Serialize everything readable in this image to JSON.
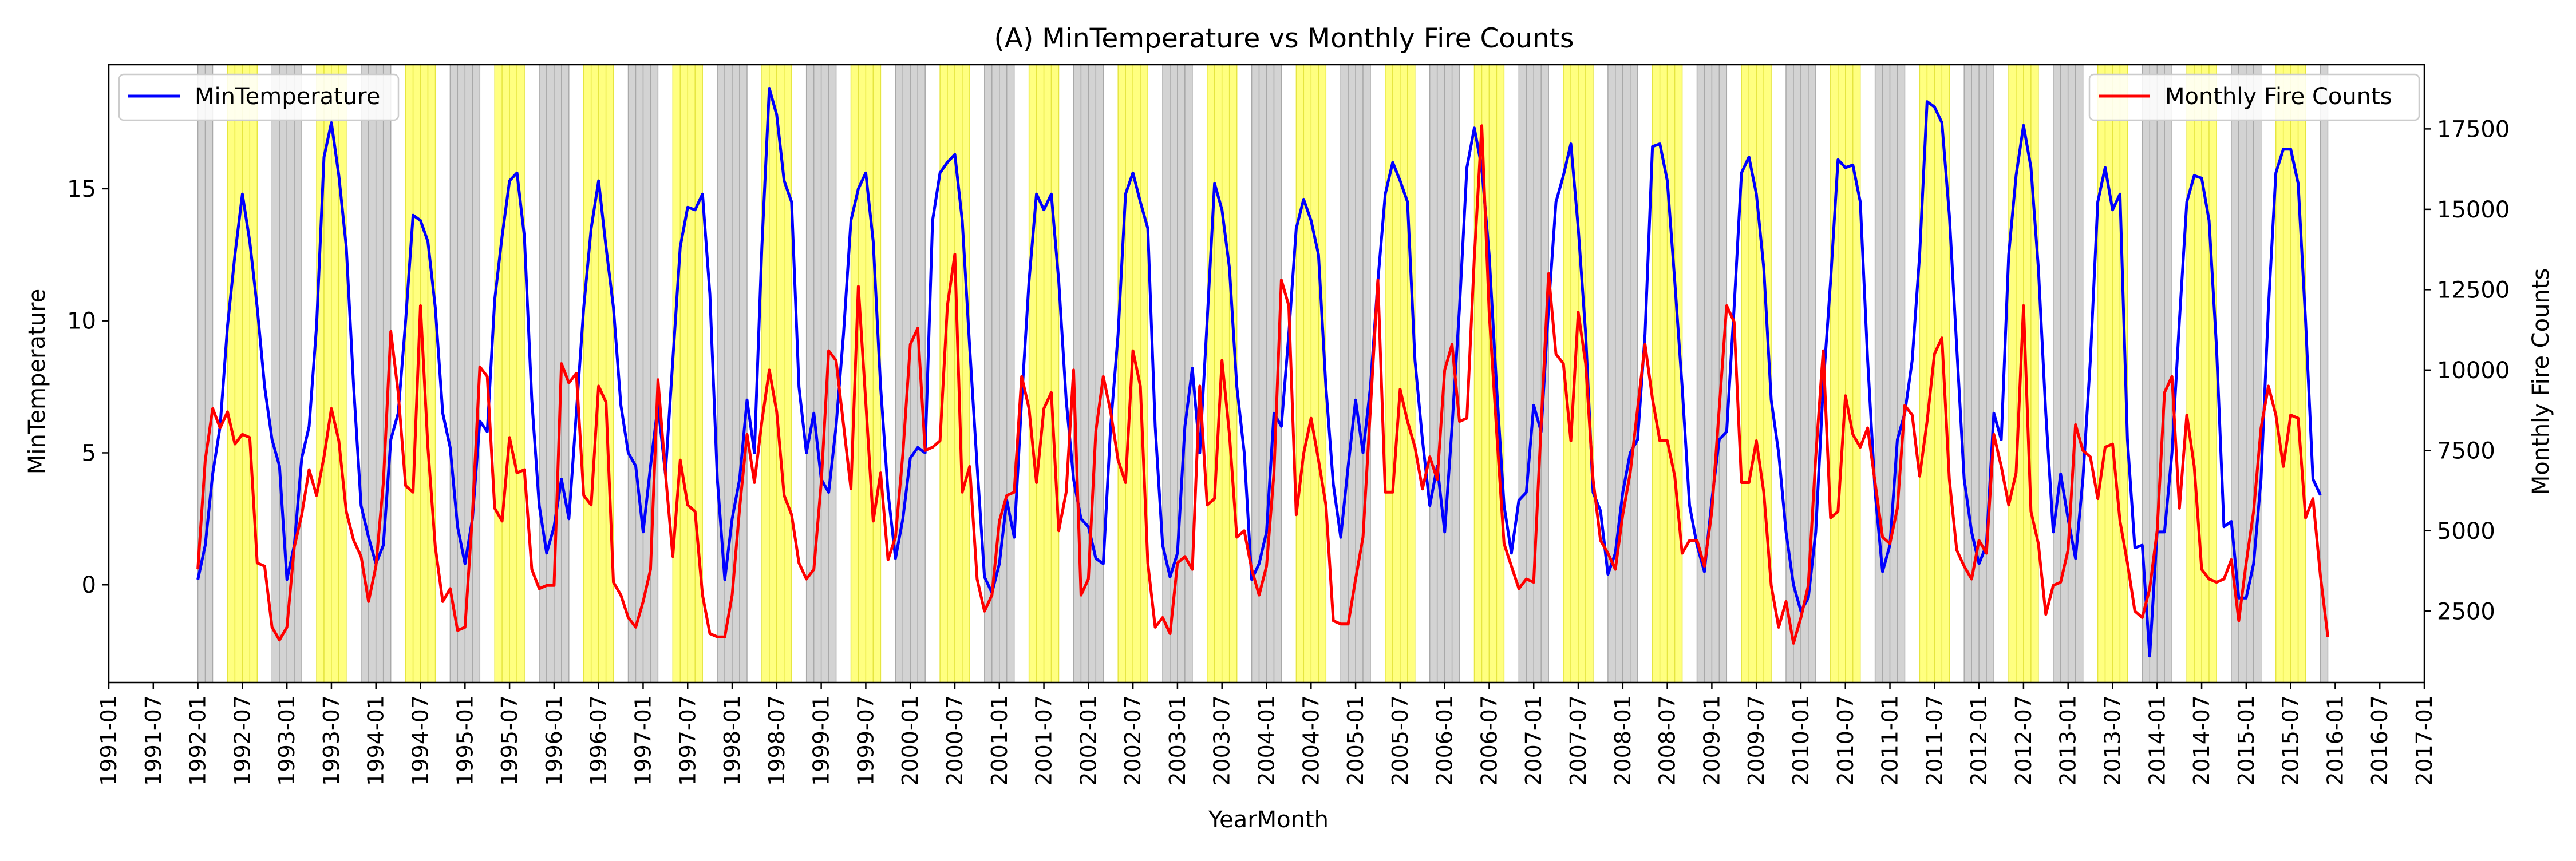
{
  "chart_data": {
    "type": "line",
    "title": "(A) MinTemperature vs Monthly Fire Counts",
    "xlabel": "YearMonth",
    "ylabel_left": "MinTemperature",
    "ylabel_right": "Monthly Fire Counts",
    "x_range": [
      "1991-01",
      "2017-01"
    ],
    "ylim_left": [
      -3.7,
      19.7
    ],
    "ylim_right": [
      280,
      19500
    ],
    "x_ticks": [
      "1991-01",
      "1991-07",
      "1992-01",
      "1992-07",
      "1993-01",
      "1993-07",
      "1994-01",
      "1994-07",
      "1995-01",
      "1995-07",
      "1996-01",
      "1996-07",
      "1997-01",
      "1997-07",
      "1998-01",
      "1998-07",
      "1999-01",
      "1999-07",
      "2000-01",
      "2000-07",
      "2001-01",
      "2001-07",
      "2002-01",
      "2002-07",
      "2003-01",
      "2003-07",
      "2004-01",
      "2004-07",
      "2005-01",
      "2005-07",
      "2006-01",
      "2006-07",
      "2007-01",
      "2007-07",
      "2008-01",
      "2008-07",
      "2009-01",
      "2009-07",
      "2010-01",
      "2010-07",
      "2011-01",
      "2011-07",
      "2012-01",
      "2012-07",
      "2013-01",
      "2013-07",
      "2014-01",
      "2014-07",
      "2015-01",
      "2015-07",
      "2016-01",
      "2016-07",
      "2017-01"
    ],
    "y_ticks_left": [
      0,
      5,
      10,
      15
    ],
    "y_ticks_right": [
      2500,
      5000,
      7500,
      10000,
      12500,
      15000,
      17500
    ],
    "grid": false,
    "background_bands": [
      {
        "months": "Nov-Feb",
        "color": "#d3d3d3"
      },
      {
        "months": "May-Aug",
        "color": "#ffff80"
      }
    ],
    "series": [
      {
        "name": "MinTemperature",
        "axis": "left",
        "color": "#0000ff",
        "start": "1992-01",
        "values": [
          0.2,
          1.5,
          4.2,
          6.0,
          9.8,
          12.5,
          14.8,
          13.0,
          10.5,
          7.5,
          5.5,
          4.5,
          0.2,
          1.5,
          4.8,
          6.0,
          9.8,
          16.2,
          17.5,
          15.5,
          12.8,
          7.5,
          3.0,
          1.8,
          0.8,
          1.5,
          5.5,
          6.5,
          10.0,
          14.0,
          13.8,
          13.0,
          10.5,
          6.5,
          5.2,
          2.2,
          0.8,
          2.5,
          6.2,
          5.8,
          10.8,
          13.2,
          15.3,
          15.6,
          13.2,
          7.0,
          3.0,
          1.2,
          2.2,
          4.0,
          2.5,
          6.5,
          10.5,
          13.5,
          15.3,
          12.8,
          10.5,
          6.8,
          5.0,
          4.5,
          2.0,
          4.5,
          6.8,
          4.2,
          8.5,
          12.8,
          14.3,
          14.2,
          14.8,
          11.0,
          4.0,
          0.2,
          2.5,
          4.0,
          7.0,
          5.0,
          12.8,
          18.8,
          17.8,
          15.3,
          14.5,
          7.5,
          5.0,
          6.5,
          4.0,
          3.5,
          6.0,
          9.5,
          13.8,
          15.0,
          15.6,
          13.0,
          7.5,
          3.5,
          1.0,
          2.5,
          4.8,
          5.2,
          5.0,
          13.8,
          15.6,
          16.0,
          16.3,
          13.8,
          9.0,
          4.5,
          0.3,
          -0.3,
          0.8,
          3.2,
          1.8,
          7.0,
          11.5,
          14.8,
          14.2,
          14.8,
          11.5,
          7.0,
          4.0,
          2.5,
          2.2,
          1.0,
          0.8,
          6.0,
          9.5,
          14.8,
          15.6,
          14.5,
          13.5,
          6.0,
          1.5,
          0.3,
          1.2,
          6.0,
          8.2,
          5.0,
          10.0,
          15.2,
          14.2,
          12.0,
          7.5,
          5.0,
          0.2,
          0.8,
          2.0,
          6.5,
          6.0,
          9.5,
          13.5,
          14.6,
          13.8,
          12.5,
          7.5,
          3.8,
          1.8,
          4.5,
          7.0,
          5.0,
          7.5,
          11.5,
          14.8,
          16.0,
          15.3,
          14.5,
          8.5,
          5.5,
          3.0,
          4.5,
          2.0,
          6.0,
          10.5,
          15.8,
          17.3,
          15.8,
          12.5,
          7.5,
          3.0,
          1.2,
          3.2,
          3.5,
          6.8,
          5.8,
          10.5,
          14.5,
          15.5,
          16.7,
          13.5,
          9.5,
          3.5,
          2.8,
          0.4,
          1.2,
          3.5,
          5.0,
          5.5,
          9.5,
          16.6,
          16.7,
          15.3,
          11.5,
          7.5,
          3.0,
          1.5,
          0.5,
          3.2,
          5.5,
          5.8,
          10.5,
          15.6,
          16.2,
          14.8,
          12.0,
          7.0,
          5.0,
          2.0,
          0.0,
          -1.0,
          -0.5,
          2.0,
          7.5,
          11.5,
          16.1,
          15.8,
          15.9,
          14.5,
          8.5,
          3.5,
          0.5,
          1.5,
          5.5,
          6.5,
          8.5,
          12.5,
          18.3,
          18.1,
          17.5,
          14.0,
          9.0,
          4.0,
          2.0,
          0.8,
          1.5,
          6.5,
          5.5,
          12.5,
          15.5,
          17.4,
          15.8,
          12.0,
          6.5,
          2.0,
          4.2,
          2.5,
          1.0,
          4.0,
          8.5,
          14.5,
          15.8,
          14.2,
          14.8,
          5.5,
          1.4,
          1.5,
          -2.7,
          2.0,
          2.0,
          5.0,
          10.0,
          14.5,
          15.5,
          15.4,
          13.8,
          9.0,
          2.2,
          2.4,
          -0.5,
          -0.5,
          0.8,
          4.0,
          10.5,
          15.6,
          16.5,
          16.5,
          15.2,
          10.0,
          4.0,
          3.4
        ]
      },
      {
        "name": "Monthly Fire Counts",
        "axis": "right",
        "color": "#ff0000",
        "start": "1992-01",
        "values": [
          3800,
          7200,
          8800,
          8200,
          8700,
          7700,
          8000,
          7900,
          4000,
          3900,
          2000,
          1600,
          2000,
          4500,
          5500,
          6900,
          6100,
          7300,
          8800,
          7800,
          5600,
          4700,
          4200,
          2800,
          3900,
          6500,
          11200,
          9300,
          6400,
          6200,
          12000,
          7600,
          4500,
          2800,
          3200,
          1900,
          2000,
          5500,
          10100,
          9800,
          5700,
          5300,
          7900,
          6800,
          6900,
          3800,
          3200,
          3300,
          3300,
          10200,
          9600,
          9900,
          6100,
          5800,
          9500,
          9000,
          3400,
          3000,
          2300,
          2000,
          2800,
          3800,
          9700,
          6800,
          4200,
          7200,
          5800,
          5600,
          3000,
          1800,
          1700,
          1700,
          3000,
          5700,
          8000,
          6500,
          8400,
          10000,
          8700,
          6100,
          5500,
          4000,
          3500,
          3800,
          6500,
          10600,
          10300,
          8300,
          6300,
          12600,
          9000,
          5300,
          6800,
          4100,
          4800,
          7400,
          10800,
          11300,
          7500,
          7600,
          7800,
          12000,
          13600,
          6200,
          7000,
          3500,
          2500,
          3000,
          5300,
          6100,
          6200,
          9800,
          8800,
          6500,
          8800,
          9300,
          5000,
          6200,
          10000,
          3000,
          3500,
          8100,
          9800,
          8700,
          7200,
          6500,
          10600,
          9500,
          4000,
          2000,
          2300,
          1800,
          4000,
          4200,
          3800,
          9500,
          5800,
          6000,
          10300,
          8000,
          4800,
          5000,
          3800,
          3000,
          3900,
          6800,
          12800,
          12000,
          5500,
          7400,
          8500,
          7200,
          5800,
          2200,
          2100,
          2100,
          3500,
          4800,
          8800,
          12800,
          6200,
          6200,
          9400,
          8400,
          7600,
          6300,
          7300,
          6600,
          10000,
          10800,
          8400,
          8500,
          13500,
          17600,
          11800,
          8100,
          4600,
          3900,
          3200,
          3500,
          3400,
          8300,
          13000,
          10500,
          10200,
          7800,
          11800,
          10200,
          6600,
          4700,
          4300,
          3800,
          5500,
          6800,
          8800,
          10800,
          9100,
          7800,
          7800,
          6700,
          4300,
          4700,
          4700,
          3900,
          5600,
          8800,
          12000,
          11500,
          6500,
          6500,
          7800,
          6200,
          3300,
          2000,
          2800,
          1500,
          2300,
          3300,
          7300,
          10600,
          5400,
          5600,
          9200,
          8000,
          7600,
          8200,
          6500,
          4800,
          4600,
          5700,
          8900,
          8600,
          6700,
          8400,
          10500,
          11000,
          6600,
          4400,
          3900,
          3500,
          4700,
          4300,
          8000,
          7000,
          5800,
          6800,
          12000,
          5600,
          4600,
          2400,
          3300,
          3400,
          4400,
          8300,
          7500,
          7300,
          6000,
          7600,
          7700,
          5300,
          4000,
          2500,
          2300,
          3200,
          5000,
          9300,
          9800,
          5700,
          8600,
          7000,
          3800,
          3500,
          3400,
          3500,
          4100,
          2200,
          4000,
          5600,
          8200,
          9500,
          8600,
          7000,
          8600,
          8500,
          5400,
          6000,
          3600,
          1700
        ]
      }
    ]
  }
}
